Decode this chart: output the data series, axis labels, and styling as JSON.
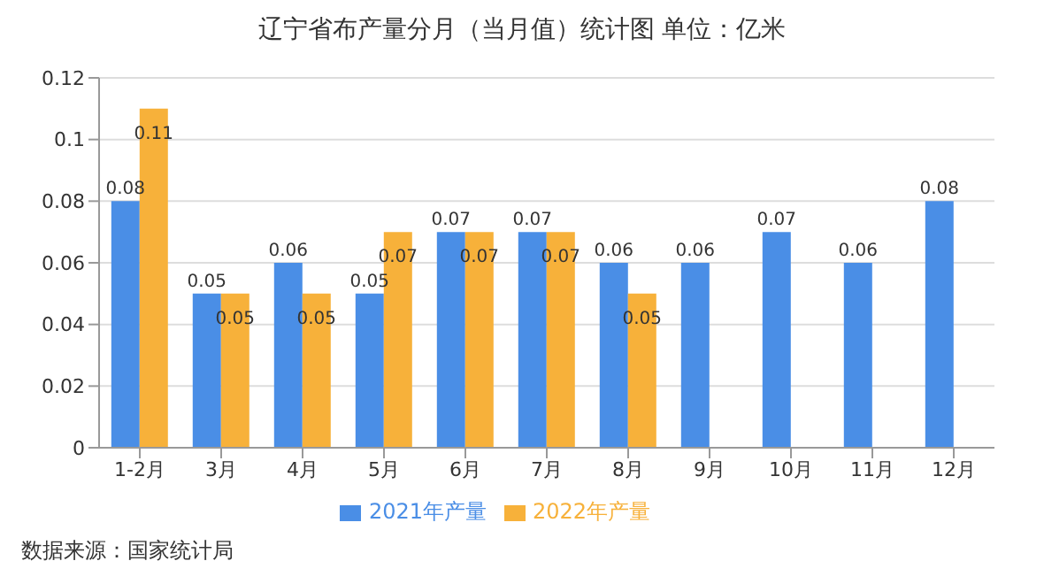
{
  "chart_data": {
    "type": "bar",
    "title": "辽宁省布产量分月（当月值）统计图 单位：亿米",
    "categories": [
      "1-2月",
      "3月",
      "4月",
      "5月",
      "6月",
      "7月",
      "8月",
      "9月",
      "10月",
      "11月",
      "12月"
    ],
    "series": [
      {
        "name": "2021年产量",
        "color": "#4a8ee6",
        "values": [
          0.08,
          0.05,
          0.06,
          0.05,
          0.07,
          0.07,
          0.06,
          0.06,
          0.07,
          0.06,
          0.08
        ]
      },
      {
        "name": "2022年产量",
        "color": "#f7b13a",
        "values": [
          0.11,
          0.05,
          0.05,
          0.07,
          0.07,
          0.07,
          0.05,
          null,
          null,
          null,
          null
        ]
      }
    ],
    "ylim": [
      0,
      0.12
    ],
    "yticks": [
      0,
      0.02,
      0.04,
      0.06,
      0.08,
      0.1,
      0.12
    ],
    "grid": "y",
    "legend": "bottom",
    "data_labels": true,
    "annotations": [
      "数据来源：国家统计局"
    ]
  }
}
